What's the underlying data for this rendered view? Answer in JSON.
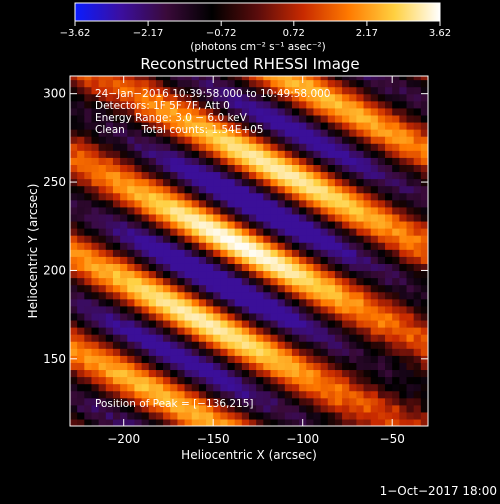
{
  "chart_data": {
    "type": "heatmap",
    "title": "Reconstructed RHESSI Image",
    "xlabel": "Heliocentric X (arcsec)",
    "ylabel": "Heliocentric Y (arcsec)",
    "xlim": [
      -230,
      -30
    ],
    "ylim": [
      112,
      310
    ],
    "xticks": [
      -200,
      -150,
      -100,
      -50
    ],
    "xtick_labels": [
      "−200",
      "−150",
      "−100",
      "−50"
    ],
    "yticks": [
      150,
      200,
      250,
      300
    ],
    "ytick_labels": [
      "150",
      "200",
      "250",
      "300"
    ],
    "colorbar": {
      "range": [
        -3.62,
        3.62
      ],
      "ticks": [
        -3.62,
        -2.17,
        -0.72,
        0.72,
        2.17,
        3.62
      ],
      "tick_labels": [
        "−3.62",
        "−2.17",
        "−0.72",
        "0.72",
        "2.17",
        "3.62"
      ],
      "unit_label": "(photons cm⁻² s⁻¹ asec⁻²)",
      "colors": [
        "#0a1cff",
        "#3b0fa0",
        "#3a0a3a",
        "#000000",
        "#5a0c0c",
        "#c82a00",
        "#ff7a00",
        "#ffd040",
        "#ffffff"
      ]
    },
    "annotations": [
      "24−Jan−2016 10:39:58.000 to 10:49:58.000",
      "Detectors: 1F 5F 7F, Att 0",
      "Energy Range: 3.0 − 6.0 keV",
      "Clean     Total counts: 1.54E+05"
    ],
    "peak": {
      "label": "Position of Peak = [−136,215]",
      "x": -136,
      "y": 215,
      "value": 3.62
    },
    "footer": "1−Oct−2017 18:00",
    "pattern": {
      "grid_step_arcsec": 4,
      "stripe_orientation_deg": 62,
      "stripe_period_arcsec": 48,
      "stripe_offset_deg": 40,
      "tail_negative_floor": -1.1
    }
  }
}
